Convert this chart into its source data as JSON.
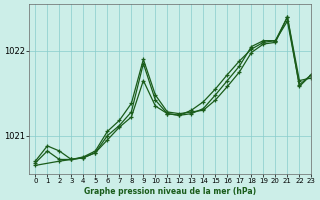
{
  "title": "Graphe pression niveau de la mer (hPa)",
  "bg_color": "#cceee8",
  "line_color": "#1a5c1a",
  "grid_color": "#88cccc",
  "xlim": [
    -0.5,
    23
  ],
  "ylim": [
    1020.55,
    1022.55
  ],
  "yticks": [
    1021,
    1022
  ],
  "xticks": [
    0,
    1,
    2,
    3,
    4,
    5,
    6,
    7,
    8,
    9,
    10,
    11,
    12,
    13,
    14,
    15,
    16,
    17,
    18,
    19,
    20,
    21,
    22,
    23
  ],
  "s1_x": [
    0,
    1,
    2,
    3,
    4,
    5,
    6,
    7,
    8,
    9,
    10,
    11,
    12,
    13,
    14,
    15,
    16,
    17,
    18,
    19,
    20,
    21,
    22,
    23
  ],
  "s1_y": [
    1020.7,
    1020.88,
    1020.82,
    1020.72,
    1020.75,
    1020.82,
    1021.05,
    1021.18,
    1021.38,
    1021.9,
    1021.48,
    1021.28,
    1021.26,
    1021.28,
    1021.3,
    1021.42,
    1021.58,
    1021.75,
    1021.98,
    1022.08,
    1022.1,
    1022.4,
    1021.65,
    1021.68
  ],
  "s2_x": [
    0,
    1,
    2,
    3,
    4,
    5,
    6,
    7,
    8,
    9,
    10,
    11,
    12,
    13,
    14,
    15,
    16,
    17,
    18,
    19,
    20,
    21,
    22,
    23
  ],
  "s2_y": [
    1020.68,
    1020.82,
    1020.72,
    1020.72,
    1020.74,
    1020.8,
    1021.0,
    1021.12,
    1021.28,
    1021.85,
    1021.42,
    1021.26,
    1021.24,
    1021.26,
    1021.32,
    1021.48,
    1021.65,
    1021.82,
    1022.05,
    1022.12,
    1022.12,
    1022.35,
    1021.6,
    1021.72
  ],
  "s3_x": [
    0,
    2,
    3,
    4,
    5,
    6,
    7,
    8,
    9,
    10,
    11,
    12,
    13,
    14,
    15,
    16,
    17,
    18,
    19,
    20,
    21,
    22,
    23
  ],
  "s3_y": [
    1020.65,
    1020.7,
    1020.72,
    1020.74,
    1020.8,
    1020.95,
    1021.1,
    1021.22,
    1021.65,
    1021.35,
    1021.26,
    1021.24,
    1021.3,
    1021.4,
    1021.55,
    1021.72,
    1021.88,
    1022.02,
    1022.1,
    1022.12,
    1022.4,
    1021.58,
    1021.72
  ]
}
